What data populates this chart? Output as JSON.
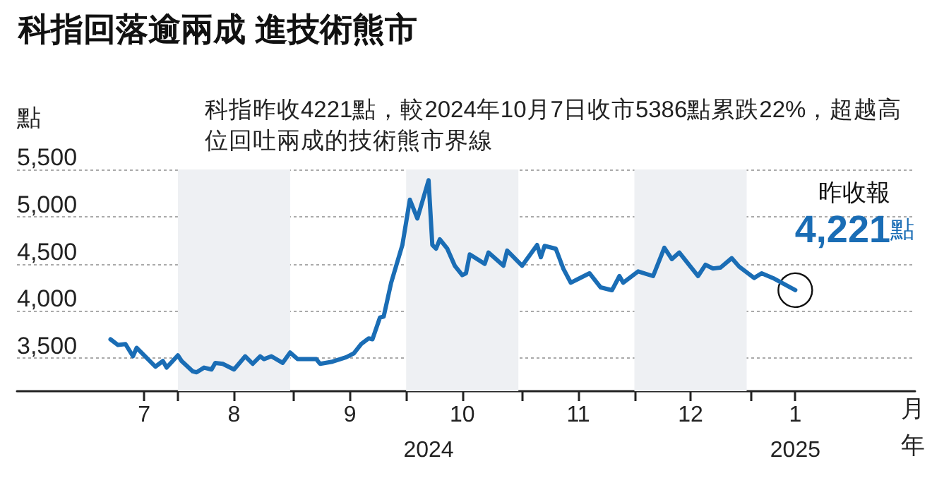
{
  "chart_data": {
    "type": "line",
    "title": "科指回落逾兩成 進技術熊市",
    "subtitle": "科指昨收4221點，較2024年10月7日收市5386點累跌22%，超越高位回吐兩成的技術熊市界線",
    "ylabel": "點",
    "xlabel": "月",
    "x2label": "年",
    "x": [
      "2024-07-14",
      "2024-07-16",
      "2024-07-18",
      "2024-07-20",
      "2024-07-21",
      "2024-07-26",
      "2024-07-28",
      "2024-07-29",
      "2024-08-01",
      "2024-08-02",
      "2024-08-05",
      "2024-08-06",
      "2024-08-08",
      "2024-08-10",
      "2024-08-11",
      "2024-08-13",
      "2024-08-16",
      "2024-08-19",
      "2024-08-21",
      "2024-08-23",
      "2024-08-24",
      "2024-08-26",
      "2024-08-29",
      "2024-08-31",
      "2024-09-02",
      "2024-09-07",
      "2024-09-08",
      "2024-09-11",
      "2024-09-15",
      "2024-09-17",
      "2024-09-19",
      "2024-09-21",
      "2024-09-22",
      "2024-09-24",
      "2024-09-25",
      "2024-09-27",
      "2024-09-30",
      "2024-10-02",
      "2024-10-04",
      "2024-10-07",
      "2024-10-08",
      "2024-10-09",
      "2024-10-10",
      "2024-10-12",
      "2024-10-14",
      "2024-10-16",
      "2024-10-17",
      "2024-10-18",
      "2024-10-22",
      "2024-10-23",
      "2024-10-27",
      "2024-10-28",
      "2024-11-01",
      "2024-11-05",
      "2024-11-06",
      "2024-11-07",
      "2024-11-10",
      "2024-11-12",
      "2024-11-14",
      "2024-11-16",
      "2024-11-19",
      "2024-11-22",
      "2024-11-25",
      "2024-11-27",
      "2024-11-28",
      "2024-12-02",
      "2024-12-06",
      "2024-12-09",
      "2024-12-11",
      "2024-12-13",
      "2024-12-16",
      "2024-12-18",
      "2024-12-20",
      "2024-12-22",
      "2024-12-24",
      "2024-12-27",
      "2024-12-29",
      "2025-01-02",
      "2025-01-04",
      "2025-01-07",
      "2025-01-13"
    ],
    "series": [
      {
        "color": "#1a6db5",
        "values": [
          3700,
          3640,
          3650,
          3520,
          3610,
          3410,
          3470,
          3400,
          3530,
          3470,
          3360,
          3350,
          3400,
          3380,
          3450,
          3440,
          3380,
          3520,
          3440,
          3520,
          3490,
          3520,
          3450,
          3560,
          3490,
          3490,
          3440,
          3460,
          3510,
          3550,
          3650,
          3710,
          3700,
          3930,
          3940,
          4300,
          4700,
          5180,
          4980,
          5386,
          4700,
          4660,
          4760,
          4660,
          4480,
          4380,
          4400,
          4600,
          4500,
          4620,
          4480,
          4640,
          4480,
          4700,
          4570,
          4690,
          4660,
          4450,
          4300,
          4340,
          4400,
          4250,
          4220,
          4370,
          4300,
          4420,
          4370,
          4670,
          4550,
          4620,
          4470,
          4370,
          4490,
          4450,
          4460,
          4560,
          4470,
          4350,
          4400,
          4350,
          4221
        ]
      }
    ],
    "xlim": [
      "2024-06-19",
      "2025-02-14"
    ],
    "xticks": [
      {
        "value": "2024-07-23",
        "label": "7"
      },
      {
        "value": "2024-08-16",
        "label": "8"
      },
      {
        "value": "2024-09-16",
        "label": "9"
      },
      {
        "value": "2024-10-16",
        "label": "10"
      },
      {
        "value": "2024-11-16",
        "label": "11"
      },
      {
        "value": "2024-12-16",
        "label": "12"
      },
      {
        "value": "2025-01-13",
        "label": "1"
      },
      {
        "value": "2024-08-01",
        "label": null
      },
      {
        "value": "2024-09-01",
        "label": null
      },
      {
        "value": "2024-10-01",
        "label": null
      },
      {
        "value": "2024-11-01",
        "label": null
      },
      {
        "value": "2024-12-01",
        "label": null
      },
      {
        "value": "2025-01-01",
        "label": null
      }
    ],
    "x2lim": [
      "2024-06-19",
      "2025-02-14"
    ],
    "x2ticks": [
      {
        "value": "2024-10-07",
        "label": "2024"
      },
      {
        "value": "2025-01-13",
        "label": "2025"
      }
    ],
    "ylim": [
      3150,
      5500
    ],
    "yticks": [
      {
        "value": 3500,
        "label": "3,500"
      },
      {
        "value": 4000,
        "label": "4,000"
      },
      {
        "value": 4500,
        "label": "4,500"
      },
      {
        "value": 5000,
        "label": "5,000"
      },
      {
        "value": 5500,
        "label": "5,500"
      }
    ],
    "grid": "y",
    "bands": [
      {
        "axis": "x",
        "from": "2024-08-01",
        "to": "2024-08-31",
        "color": "#eef0f3"
      },
      {
        "axis": "x",
        "from": "2024-10-01",
        "to": "2024-10-31",
        "color": "#eef0f3"
      },
      {
        "axis": "x",
        "from": "2024-12-01",
        "to": "2024-12-31",
        "color": "#eef0f3"
      }
    ],
    "annotations": [
      {
        "text": "昨收報\n4,221點",
        "x": "2025-01-13",
        "y": 4221
      }
    ]
  }
}
